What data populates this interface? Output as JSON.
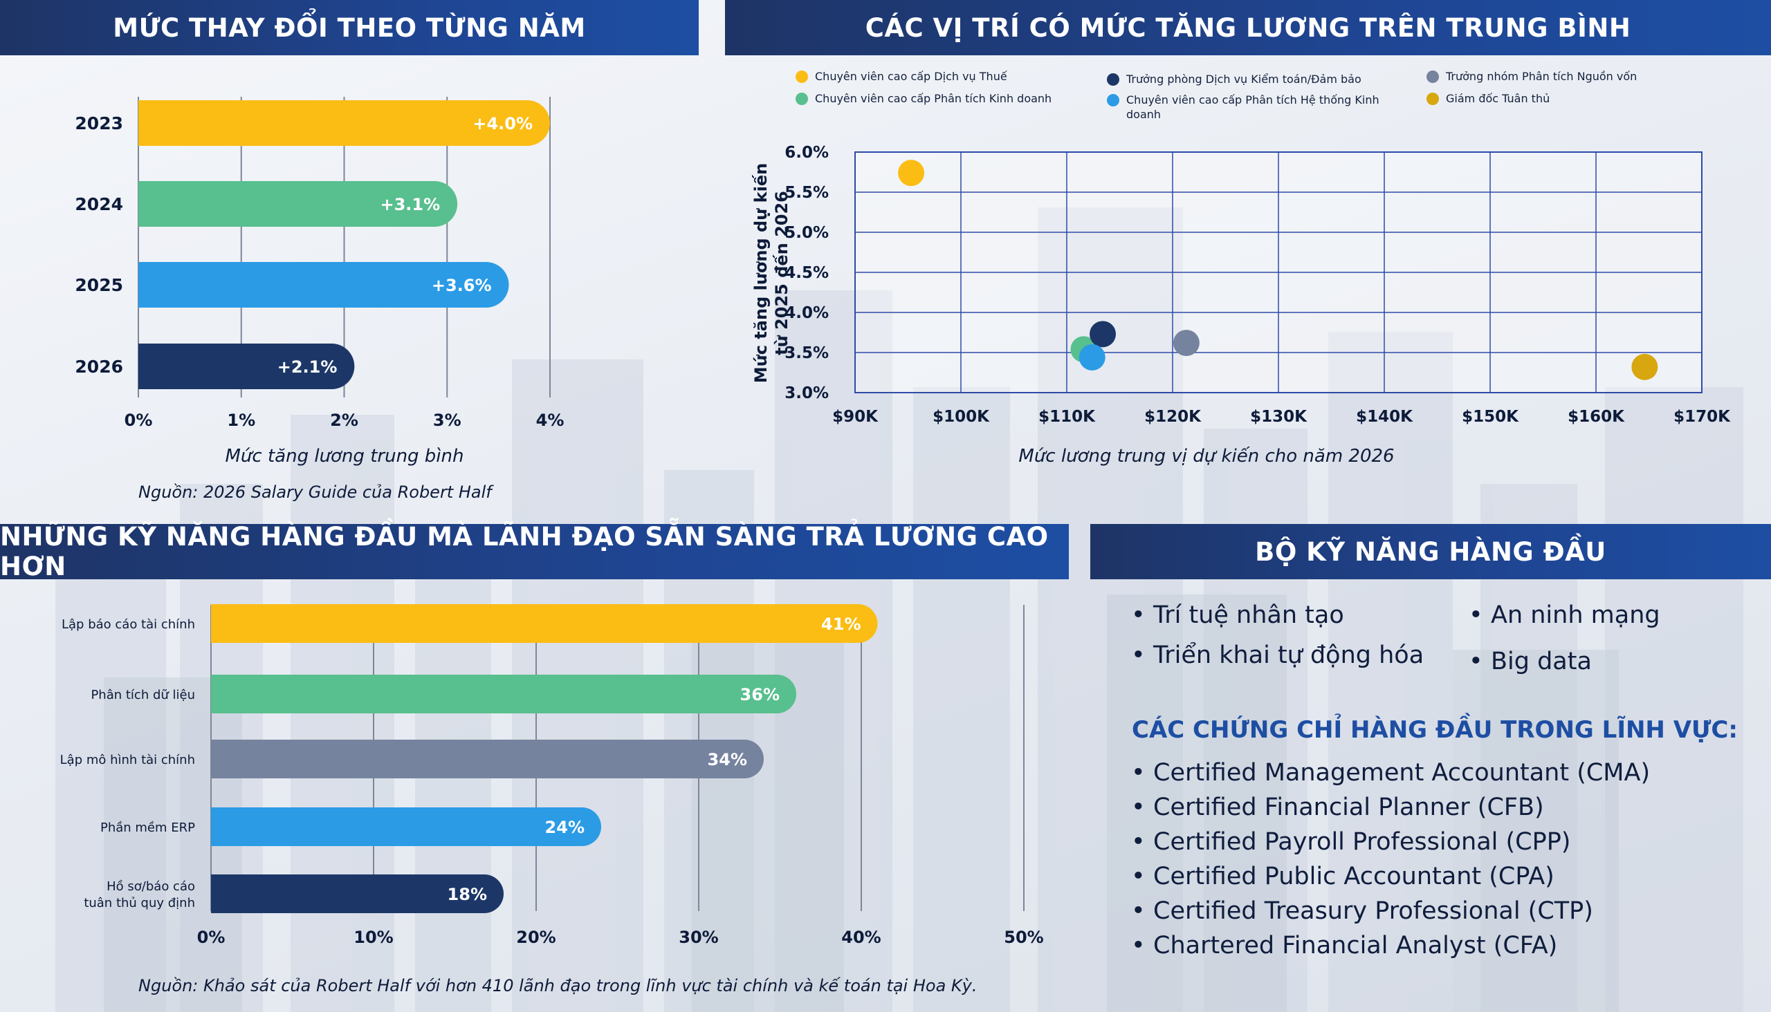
{
  "headers": {
    "yearly": "MỨC THAY ĐỔI THEO TỪNG NĂM",
    "positions": "CÁC VỊ TRÍ CÓ MỨC TĂNG LƯƠNG TRÊN TRUNG BÌNH",
    "skills_pay": "NHỮNG KỸ NĂNG HÀNG ĐẦU MÀ LÃNH ĐẠO SẴN SÀNG TRẢ LƯƠNG CAO HƠN",
    "top_skills": "BỘ KỸ NĂNG HÀNG ĐẦU"
  },
  "colors": {
    "yellow": "#fbbd14",
    "green": "#58bf8e",
    "blue": "#2b9be6",
    "navy": "#1c3767",
    "slate": "#76839f",
    "gold": "#d8a60e",
    "header": "#1f4592",
    "cert_title": "#1d4ea3"
  },
  "chart_data": [
    {
      "type": "bar",
      "orientation": "horizontal",
      "categories": [
        "2023",
        "2024",
        "2025",
        "2026"
      ],
      "values": [
        4.0,
        3.1,
        3.6,
        2.1
      ],
      "data_labels": [
        "+4.0%",
        "+3.1%",
        "+3.6%",
        "+2.1%"
      ],
      "bar_colors": [
        "#fbbd14",
        "#58bf8e",
        "#2b9be6",
        "#1c3767"
      ],
      "xlabel": "Mức tăng lương trung bình",
      "xlim": [
        0,
        4
      ],
      "xticks": [
        {
          "value": 0,
          "label": "0%"
        },
        {
          "value": 1,
          "label": "1%"
        },
        {
          "value": 2,
          "label": "2%"
        },
        {
          "value": 3,
          "label": "3%"
        },
        {
          "value": 4,
          "label": "4%"
        }
      ],
      "grid": "vertical",
      "source": "Nguồn: 2026 Salary Guide của Robert Half"
    },
    {
      "type": "scatter",
      "xlabel": "Mức lương trung vị dự kiến cho năm 2026",
      "ylabel_lines": [
        "Mức tăng lương dự kiến",
        "từ 2025 đến 2026"
      ],
      "xlim": [
        90,
        170
      ],
      "ylim": [
        3.0,
        6.0
      ],
      "xticks": [
        {
          "value": 90,
          "label": "$90K"
        },
        {
          "value": 100,
          "label": "$100K"
        },
        {
          "value": 110,
          "label": "$110K"
        },
        {
          "value": 120,
          "label": "$120K"
        },
        {
          "value": 130,
          "label": "$130K"
        },
        {
          "value": 140,
          "label": "$140K"
        },
        {
          "value": 150,
          "label": "$150K"
        },
        {
          "value": 160,
          "label": "$160K"
        },
        {
          "value": 170,
          "label": "$170K"
        }
      ],
      "yticks": [
        {
          "value": 3.0,
          "label": "3.0%"
        },
        {
          "value": 3.5,
          "label": "3.5%"
        },
        {
          "value": 4.0,
          "label": "4.0%"
        },
        {
          "value": 4.5,
          "label": "4.5%"
        },
        {
          "value": 5.0,
          "label": "5.0%"
        },
        {
          "value": 5.5,
          "label": "5.5%"
        },
        {
          "value": 6.0,
          "label": "6.0%"
        }
      ],
      "grid": true,
      "legend_position": "top",
      "series": [
        {
          "name": "Chuyên viên cao cấp Dịch vụ Thuế",
          "color": "#fbbd14",
          "x": 95.3,
          "y": 5.74
        },
        {
          "name": "Chuyên viên cao cấp Phân tích Kinh doanh",
          "color": "#58bf8e",
          "x": 111.6,
          "y": 3.54
        },
        {
          "name": "Trưởng phòng Dịch vụ Kiểm toán/Đảm bảo",
          "color": "#1c3767",
          "x": 113.4,
          "y": 3.73
        },
        {
          "name": "Chuyên viên cao cấp Phân tích Hệ thống Kinh doanh",
          "color": "#2b9be6",
          "x": 112.4,
          "y": 3.44
        },
        {
          "name": "Trưởng nhóm Phân tích Nguồn vốn",
          "color": "#76839f",
          "x": 121.3,
          "y": 3.62
        },
        {
          "name": "Giám đốc Tuân thủ",
          "color": "#d8a60e",
          "x": 164.6,
          "y": 3.32
        }
      ]
    },
    {
      "type": "bar",
      "orientation": "horizontal",
      "categories": [
        [
          "Lập báo cáo tài chính"
        ],
        [
          "Phân tích dữ liệu"
        ],
        [
          "Lập mô hình tài chính"
        ],
        [
          "Phần mềm ERP"
        ],
        [
          "Hồ sơ/báo cáo",
          "tuân thủ quy định"
        ]
      ],
      "values": [
        41,
        36,
        34,
        24,
        18
      ],
      "data_labels": [
        "41%",
        "36%",
        "34%",
        "24%",
        "18%"
      ],
      "bar_colors": [
        "#fbbd14",
        "#58bf8e",
        "#76839f",
        "#2b9be6",
        "#1c3767"
      ],
      "xlim": [
        0,
        50
      ],
      "xticks": [
        {
          "value": 0,
          "label": "0%"
        },
        {
          "value": 10,
          "label": "10%"
        },
        {
          "value": 20,
          "label": "20%"
        },
        {
          "value": 30,
          "label": "30%"
        },
        {
          "value": 40,
          "label": "40%"
        },
        {
          "value": 50,
          "label": "50%"
        }
      ],
      "grid": "vertical",
      "source": "Nguồn: Khảo sát của Robert Half với hơn 410 lãnh đạo trong lĩnh vực tài chính và kế toán tại Hoa Kỳ."
    }
  ],
  "top_skills": {
    "left": [
      "Trí tuệ nhân tạo",
      "Triển khai tự động hóa"
    ],
    "right": [
      "An ninh mạng",
      "Big data"
    ]
  },
  "certifications": {
    "title": "CÁC CHỨNG CHỈ HÀNG ĐẦU TRONG LĨNH VỰC:",
    "items": [
      "Certified Management Accountant (CMA)",
      "Certified Financial Planner (CFB)",
      "Certified Payroll Professional (CPP)",
      "Certified Public Accountant (CPA)",
      "Certified Treasury Professional (CTP)",
      "Chartered Financial Analyst (CFA)"
    ]
  }
}
